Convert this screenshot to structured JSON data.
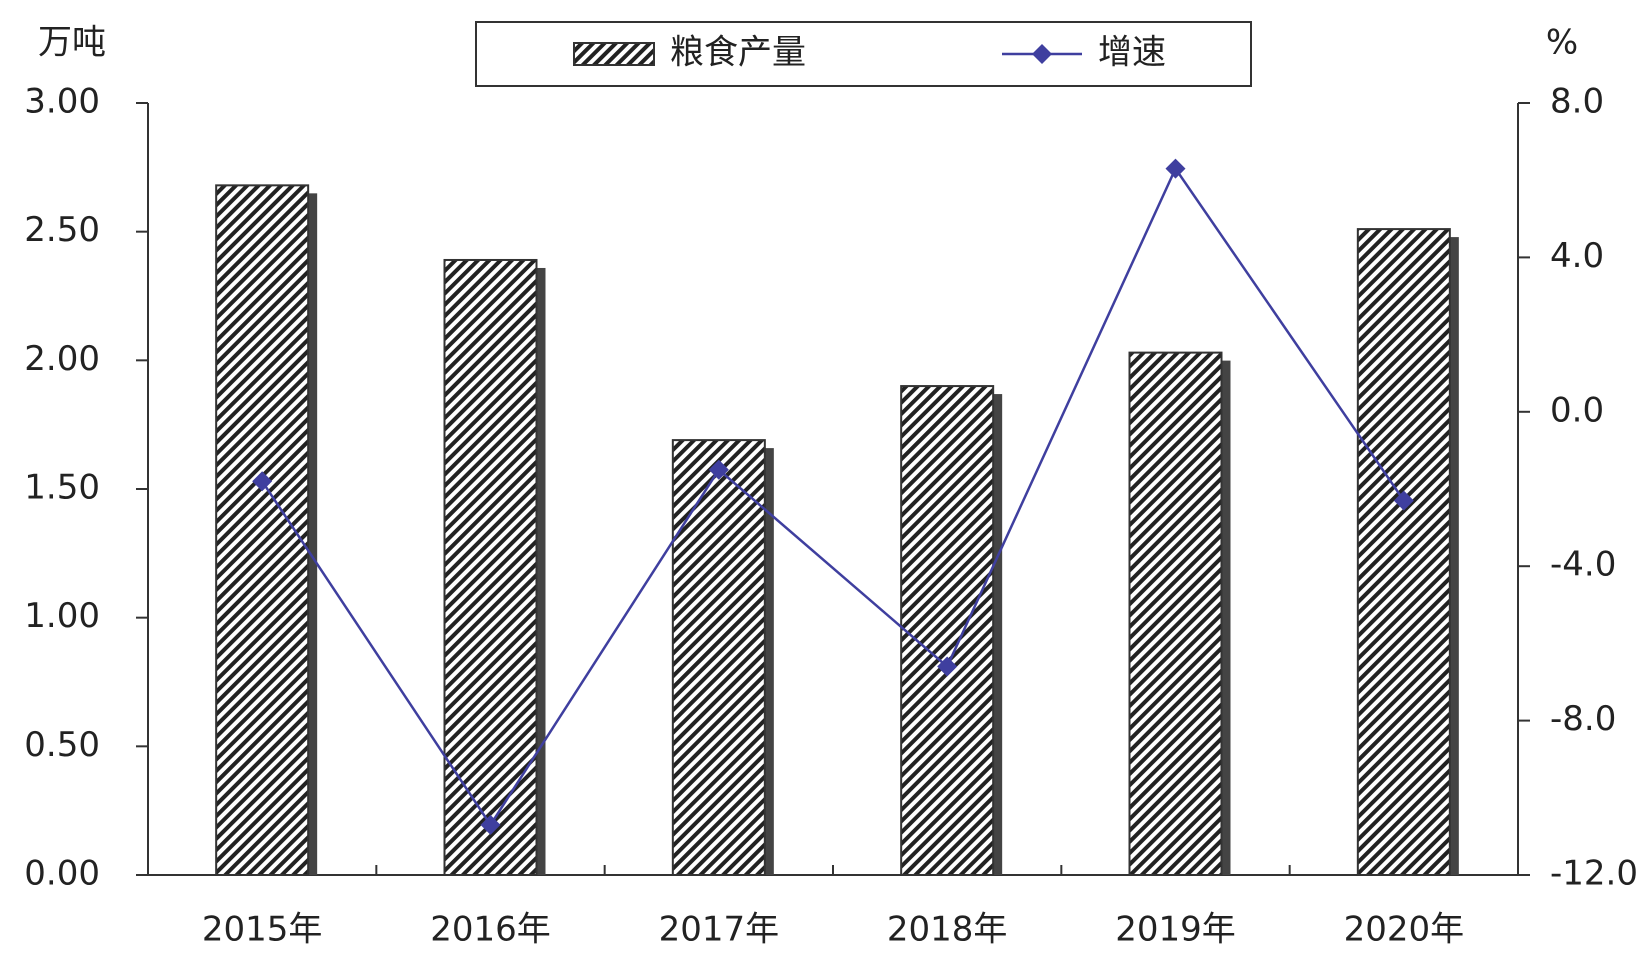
{
  "chart_data": {
    "type": "bar_line",
    "y_unit_label": "万吨",
    "y2_unit_label": "%",
    "categories": [
      "2015年",
      "2016年",
      "2017年",
      "2018年",
      "2019年",
      "2020年"
    ],
    "series": [
      {
        "name": "粮食产量",
        "type": "bar",
        "color": "#333333",
        "values": [
          2.68,
          2.39,
          1.69,
          1.9,
          2.03,
          2.51
        ]
      },
      {
        "name": "增速",
        "type": "line",
        "axis": "y2",
        "color": "#3f3f9f",
        "values": [
          -1.8,
          -10.7,
          -1.5,
          -6.6,
          6.3,
          -2.3
        ]
      }
    ],
    "ylim": [
      0,
      3
    ],
    "yticks": [
      {
        "value": 0,
        "label": "0.00"
      },
      {
        "value": 0.5,
        "label": "0.50"
      },
      {
        "value": 1,
        "label": "1.00"
      },
      {
        "value": 1.5,
        "label": "1.50"
      },
      {
        "value": 2,
        "label": "2.00"
      },
      {
        "value": 2.5,
        "label": "2.50"
      },
      {
        "value": 3,
        "label": "3.00"
      }
    ],
    "y2lim": [
      -12,
      8
    ],
    "y2ticks": [
      {
        "value": -12,
        "label": "-12.0"
      },
      {
        "value": -8,
        "label": "-8.0"
      },
      {
        "value": -4,
        "label": "-4.0"
      },
      {
        "value": 0,
        "label": "0.0"
      },
      {
        "value": 4,
        "label": "4.0"
      },
      {
        "value": 8,
        "label": "8.0"
      }
    ],
    "legend": "top"
  }
}
